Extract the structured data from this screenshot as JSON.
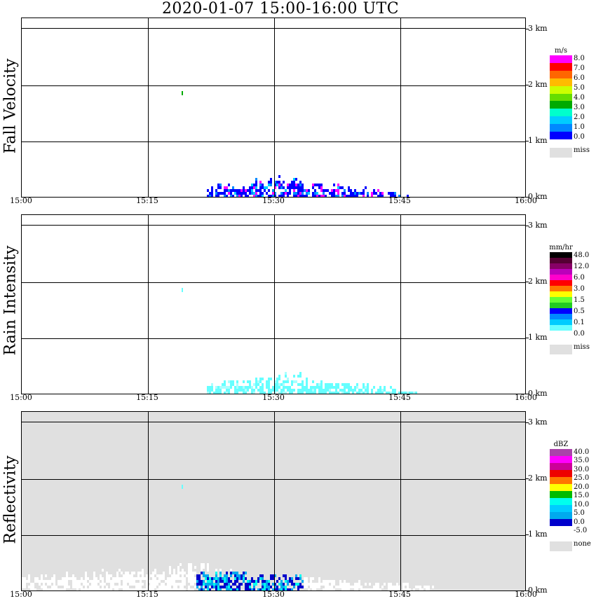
{
  "title": "2020-01-07   15:00-16:00 UTC",
  "time_ticks": [
    "15:00",
    "15:15",
    "15:30",
    "15:45",
    "16:00"
  ],
  "height_ticks": [
    "0 km",
    "1 km",
    "2 km",
    "3 km"
  ],
  "chart_data": [
    {
      "type": "heatmap",
      "title": "Fall Velocity",
      "xlabel": "",
      "ylabel": "Fall Velocity",
      "xlim": [
        "15:00",
        "16:00"
      ],
      "ylim_km": [
        0,
        3.2
      ],
      "grid": true,
      "background": "#ffffff",
      "colorbar": {
        "unit": "m/s",
        "labels": [
          "8.0",
          "7.0",
          "6.0",
          "5.0",
          "4.0",
          "3.0",
          "2.0",
          "1.0",
          "0.0"
        ],
        "colors": [
          "#ff00ff",
          "#ff0000",
          "#ff6600",
          "#ffbb00",
          "#ccff00",
          "#66dd00",
          "#00aa00",
          "#00ffcc",
          "#00ccff",
          "#0088ff",
          "#0000ff"
        ],
        "miss_label": "miss",
        "miss_color": "#e0e0e0"
      },
      "echo": {
        "start": "15:22",
        "end": "15:46",
        "max_height_km": 0.45,
        "isolated": {
          "time": "15:19",
          "height_km": 1.9
        }
      }
    },
    {
      "type": "heatmap",
      "title": "Rain Intensity",
      "xlabel": "",
      "ylabel": "Rain Intensity",
      "xlim": [
        "15:00",
        "16:00"
      ],
      "ylim_km": [
        0,
        3.2
      ],
      "grid": true,
      "background": "#ffffff",
      "colorbar": {
        "unit": "mm/hr",
        "labels": [
          "48.0",
          "12.0",
          "6.0",
          "3.0",
          "1.5",
          "0.5",
          "0.1",
          "0.0"
        ],
        "colors": [
          "#000000",
          "#550033",
          "#880066",
          "#bb00bb",
          "#ff00cc",
          "#ff0000",
          "#ff7700",
          "#ffff00",
          "#66ff33",
          "#22cc22",
          "#0000ff",
          "#0088ff",
          "#00ccff",
          "#66ffff",
          "#ffffff"
        ],
        "miss_label": "miss",
        "miss_color": "#e0e0e0"
      },
      "echo": {
        "start": "15:22",
        "end": "15:47",
        "max_height_km": 0.45,
        "isolated": {
          "time": "15:19",
          "height_km": 1.9
        }
      }
    },
    {
      "type": "heatmap",
      "title": "Reflectivity",
      "xlabel": "",
      "ylabel": "Reflectivity",
      "xlim": [
        "15:00",
        "16:00"
      ],
      "ylim_km": [
        0,
        3.2
      ],
      "grid": true,
      "background": "#e0e0e0",
      "colorbar": {
        "unit": "dBZ",
        "labels": [
          "40.0",
          "35.0",
          "30.0",
          "25.0",
          "20.0",
          "15.0",
          "10.0",
          "5.0",
          "0.0",
          "-5.0"
        ],
        "colors": [
          "#aa44aa",
          "#ff00ff",
          "#cc0099",
          "#ee0000",
          "#ff7700",
          "#ffff00",
          "#00bb00",
          "#00ffee",
          "#00ccff",
          "#00aaee",
          "#0000cc",
          "#ffffff"
        ],
        "miss_label": "none",
        "miss_color": "#e0e0e0"
      },
      "echo": {
        "start": "15:00",
        "end": "15:49",
        "max_height_km": 0.55,
        "isolated": {
          "time": "15:19",
          "height_km": 1.9
        }
      }
    }
  ]
}
